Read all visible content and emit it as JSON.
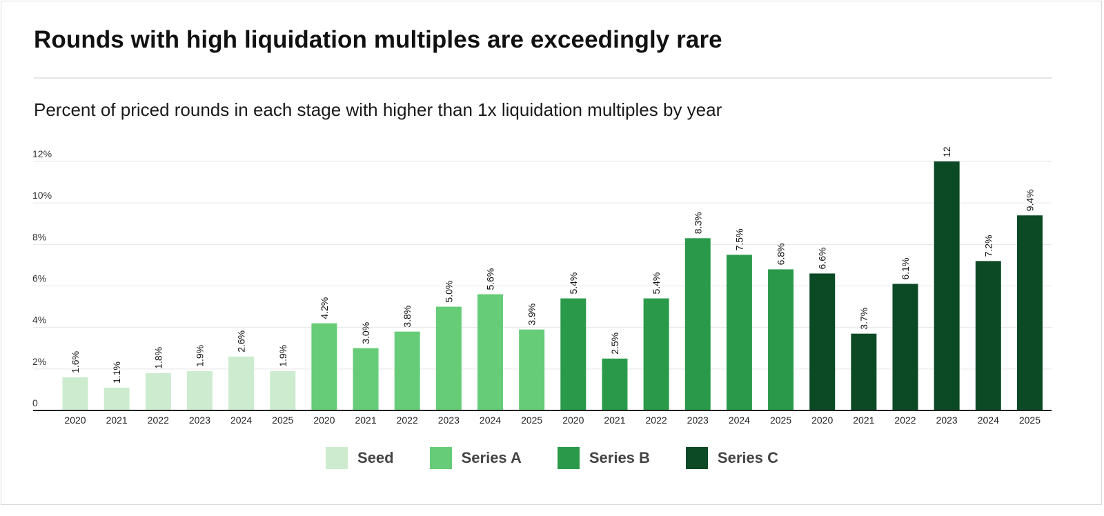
{
  "title": "Rounds with high liquidation multiples are exceedingly rare",
  "subtitle": "Percent of priced rounds in each stage with higher than 1x liquidation multiples by year",
  "colors": {
    "Seed": "#cdeccf",
    "Series A": "#66cc77",
    "Series B": "#2a9a4a",
    "Series C": "#0b4a25",
    "axis": "#222222",
    "grid": "#e6e6e6"
  },
  "chart_data": {
    "type": "bar",
    "title": "Rounds with high liquidation multiples are exceedingly rare",
    "subtitle": "Percent of priced rounds in each stage with higher than 1x liquidation multiples by year",
    "ylim": [
      0,
      12
    ],
    "yticks": [
      "0",
      "2%",
      "4%",
      "6%",
      "8%",
      "10%",
      "12%"
    ],
    "ytick_values": [
      0,
      2,
      4,
      6,
      8,
      10,
      12
    ],
    "grid": true,
    "legend_position": "bottom-center",
    "series": [
      {
        "name": "Seed",
        "categories": [
          "2020",
          "2021",
          "2022",
          "2023",
          "2024",
          "2025"
        ],
        "values": [
          1.6,
          1.1,
          1.8,
          1.9,
          2.6,
          1.9
        ],
        "labels": [
          "1.6%",
          "1.1%",
          "1.8%",
          "1.9%",
          "2.6%",
          "1.9%"
        ]
      },
      {
        "name": "Series A",
        "categories": [
          "2020",
          "2021",
          "2022",
          "2023",
          "2024",
          "2025"
        ],
        "values": [
          4.2,
          3.0,
          3.8,
          5.0,
          5.6,
          3.9
        ],
        "labels": [
          "4.2%",
          "3.0%",
          "3.8%",
          "5.0%",
          "5.6%",
          "3.9%"
        ]
      },
      {
        "name": "Series B",
        "categories": [
          "2020",
          "2021",
          "2022",
          "2023",
          "2024",
          "2025"
        ],
        "values": [
          5.4,
          2.5,
          5.4,
          8.3,
          7.5,
          6.8
        ],
        "labels": [
          "5.4%",
          "2.5%",
          "5.4%",
          "8.3%",
          "7.5%",
          "6.8%"
        ]
      },
      {
        "name": "Series C",
        "categories": [
          "2020",
          "2021",
          "2022",
          "2023",
          "2024",
          "2025"
        ],
        "values": [
          6.6,
          3.7,
          6.1,
          12,
          7.2,
          9.4
        ],
        "labels": [
          "6.6%",
          "3.7%",
          "6.1%",
          "12",
          "7.2%",
          "9.4%"
        ]
      }
    ]
  }
}
